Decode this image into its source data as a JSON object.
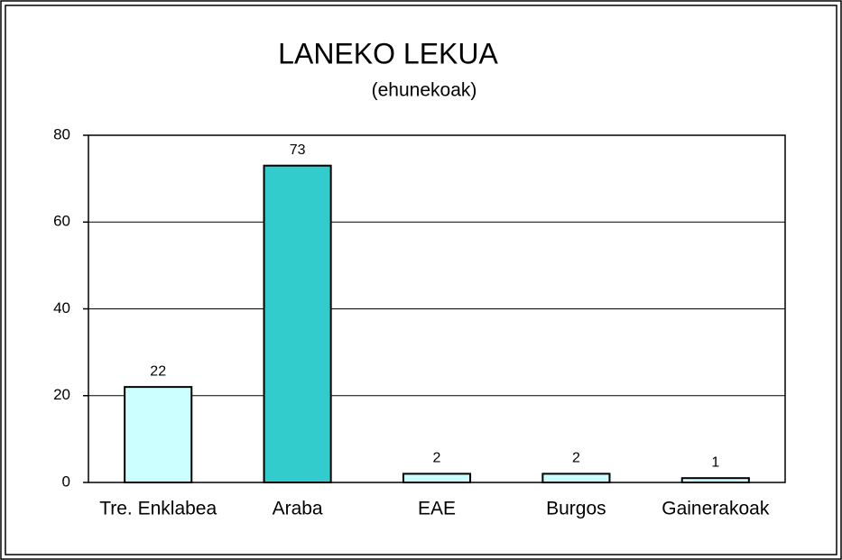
{
  "chart_data": {
    "type": "bar",
    "title": "LANEKO LEKUA",
    "subtitle": "(ehunekoak)",
    "categories": [
      "Tre. Enklabea",
      "Araba",
      "EAE",
      "Burgos",
      "Gainerakoak"
    ],
    "values": [
      22,
      73,
      2,
      2,
      1
    ],
    "colors": [
      "#ccffff",
      "#33cccc",
      "#ccffff",
      "#ccffff",
      "#ccffff"
    ],
    "ylim": [
      0,
      80
    ],
    "yticks": [
      0,
      20,
      40,
      60,
      80
    ],
    "grid": true
  }
}
